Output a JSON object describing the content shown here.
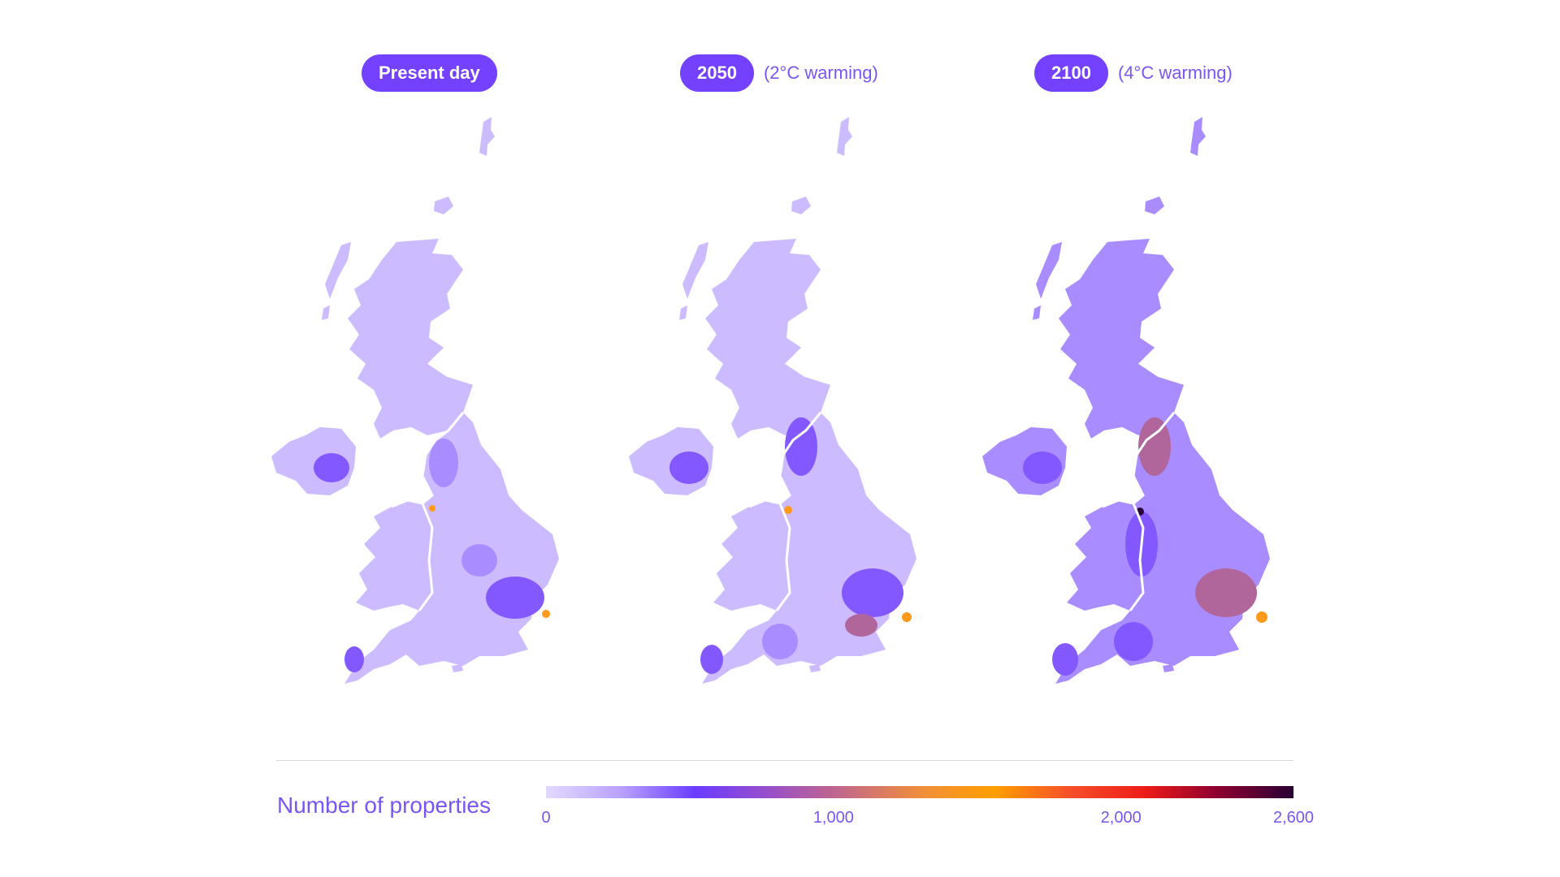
{
  "panels": [
    {
      "label": "Present day",
      "note": ""
    },
    {
      "label": "2050",
      "note": "(2°C warming)"
    },
    {
      "label": "2100",
      "note": "(4°C warming)"
    }
  ],
  "legend": {
    "title": "Number of properties",
    "ticks": [
      "0",
      "1,000",
      "2,000",
      "2,600"
    ],
    "tick_values": [
      0,
      1000,
      2000,
      2600
    ],
    "max": 2600,
    "colors": [
      "#e3d9ff",
      "#b9a2ff",
      "#6a3cff",
      "#9a4fc8",
      "#c46a86",
      "#f08d3c",
      "#ff9f00",
      "#f5502a",
      "#ee1c18",
      "#8c0030",
      "#280035"
    ]
  },
  "map_colors": {
    "low": "#cdbbff",
    "mid": "#a98cff",
    "high": "#8458ff",
    "hot": "#ff9a1a",
    "rose": "#b0669a",
    "darkest": "#2a0040"
  }
}
